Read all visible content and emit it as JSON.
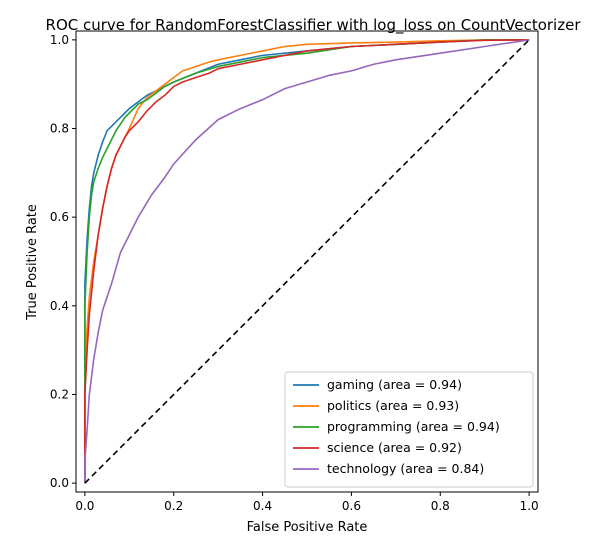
{
  "chart_data": {
    "type": "line",
    "title": "ROC curve for RandomForestClassifier with log_loss on CountVectorizer",
    "xlabel": "False Positive Rate",
    "ylabel": "True Positive Rate",
    "xlim": [
      -0.02,
      1.02
    ],
    "ylim": [
      -0.02,
      1.02
    ],
    "xticks": [
      "0.0",
      "0.2",
      "0.4",
      "0.6",
      "0.8",
      "1.0"
    ],
    "yticks": [
      "0.0",
      "0.2",
      "0.4",
      "0.6",
      "0.8",
      "1.0"
    ],
    "grid": false,
    "legend_position": "lower-right",
    "series": [
      {
        "name": "gaming (area = 0.94)",
        "color": "#1f77b4",
        "x": [
          0,
          0,
          0.005,
          0.01,
          0.015,
          0.02,
          0.03,
          0.04,
          0.05,
          0.06,
          0.07,
          0.08,
          0.09,
          0.1,
          0.12,
          0.14,
          0.16,
          0.18,
          0.2,
          0.25,
          0.3,
          0.35,
          0.4,
          0.5,
          0.6,
          0.7,
          0.8,
          0.9,
          1.0
        ],
        "y": [
          0,
          0.45,
          0.55,
          0.62,
          0.67,
          0.7,
          0.74,
          0.77,
          0.795,
          0.805,
          0.815,
          0.825,
          0.835,
          0.845,
          0.86,
          0.875,
          0.885,
          0.895,
          0.905,
          0.925,
          0.945,
          0.955,
          0.965,
          0.975,
          0.985,
          0.99,
          0.995,
          1.0,
          1.0
        ]
      },
      {
        "name": "politics (area = 0.93)",
        "color": "#ff7f0e",
        "x": [
          0,
          0,
          0.005,
          0.01,
          0.02,
          0.03,
          0.04,
          0.05,
          0.06,
          0.07,
          0.08,
          0.09,
          0.1,
          0.12,
          0.14,
          0.16,
          0.18,
          0.2,
          0.22,
          0.25,
          0.28,
          0.3,
          0.35,
          0.4,
          0.45,
          0.5,
          0.6,
          0.7,
          0.8,
          0.9,
          1.0
        ],
        "y": [
          0,
          0.25,
          0.35,
          0.42,
          0.5,
          0.56,
          0.62,
          0.67,
          0.71,
          0.74,
          0.76,
          0.78,
          0.8,
          0.845,
          0.87,
          0.885,
          0.9,
          0.915,
          0.93,
          0.94,
          0.95,
          0.955,
          0.965,
          0.975,
          0.985,
          0.99,
          0.993,
          0.995,
          0.998,
          1.0,
          1.0
        ]
      },
      {
        "name": "programming (area = 0.94)",
        "color": "#2ca02c",
        "x": [
          0,
          0,
          0.005,
          0.01,
          0.015,
          0.02,
          0.03,
          0.04,
          0.05,
          0.06,
          0.07,
          0.08,
          0.09,
          0.1,
          0.12,
          0.14,
          0.16,
          0.18,
          0.2,
          0.25,
          0.3,
          0.35,
          0.4,
          0.5,
          0.6,
          0.7,
          0.8,
          0.9,
          1.0
        ],
        "y": [
          0,
          0.4,
          0.52,
          0.6,
          0.65,
          0.68,
          0.71,
          0.735,
          0.755,
          0.775,
          0.795,
          0.81,
          0.825,
          0.835,
          0.855,
          0.865,
          0.88,
          0.895,
          0.905,
          0.925,
          0.94,
          0.95,
          0.96,
          0.97,
          0.985,
          0.99,
          0.995,
          1.0,
          1.0
        ]
      },
      {
        "name": "science (area = 0.92)",
        "color": "#d62728",
        "x": [
          0,
          0,
          0.005,
          0.01,
          0.02,
          0.03,
          0.04,
          0.05,
          0.06,
          0.07,
          0.08,
          0.09,
          0.1,
          0.12,
          0.14,
          0.16,
          0.18,
          0.2,
          0.22,
          0.25,
          0.28,
          0.3,
          0.35,
          0.4,
          0.45,
          0.5,
          0.6,
          0.7,
          0.8,
          0.9,
          1.0
        ],
        "y": [
          0,
          0.2,
          0.3,
          0.38,
          0.48,
          0.56,
          0.62,
          0.67,
          0.71,
          0.74,
          0.76,
          0.78,
          0.795,
          0.815,
          0.84,
          0.86,
          0.875,
          0.895,
          0.905,
          0.915,
          0.925,
          0.935,
          0.945,
          0.955,
          0.965,
          0.975,
          0.985,
          0.99,
          0.995,
          0.999,
          1.0
        ]
      },
      {
        "name": "technology (area = 0.84)",
        "color": "#9467bd",
        "x": [
          0,
          0,
          0.005,
          0.01,
          0.02,
          0.03,
          0.04,
          0.05,
          0.06,
          0.08,
          0.1,
          0.12,
          0.15,
          0.18,
          0.2,
          0.25,
          0.3,
          0.35,
          0.4,
          0.45,
          0.5,
          0.55,
          0.6,
          0.65,
          0.7,
          0.8,
          0.9,
          1.0
        ],
        "y": [
          0,
          0.05,
          0.12,
          0.2,
          0.28,
          0.34,
          0.39,
          0.42,
          0.45,
          0.52,
          0.56,
          0.6,
          0.65,
          0.69,
          0.72,
          0.775,
          0.82,
          0.845,
          0.865,
          0.89,
          0.905,
          0.92,
          0.93,
          0.945,
          0.955,
          0.97,
          0.985,
          1.0
        ]
      }
    ],
    "reference_line": {
      "x": [
        0,
        1
      ],
      "y": [
        0,
        1
      ],
      "color": "#000000",
      "style": "dashed"
    }
  }
}
